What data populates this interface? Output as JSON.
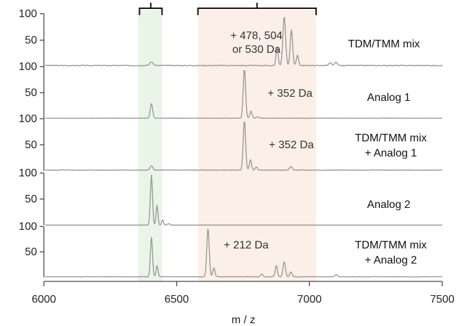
{
  "chart_data": {
    "type": "line",
    "title": "",
    "xlabel": "m / z",
    "xlim": [
      6000,
      7500
    ],
    "x_ticks": [
      6000,
      6500,
      7000,
      7500
    ],
    "y_ticks": [
      50,
      100
    ],
    "highlight_regions": [
      {
        "x0": 6355,
        "x1": 6445,
        "color": "#e9f5e6"
      },
      {
        "x0": 6580,
        "x1": 7025,
        "color": "#fbefe8"
      }
    ],
    "top_brackets": [
      {
        "x0": 6360,
        "x1": 6445
      },
      {
        "x0": 6580,
        "x1": 7025
      }
    ],
    "series": [
      {
        "label_lines": [
          "TDM/TMM mix"
        ],
        "annotation_lines": [
          "+ 478, 504",
          "or 530 Da"
        ],
        "noise": 0.7,
        "baseline": 2,
        "peaks": [
          {
            "mz": 6405,
            "height": 7,
            "width": 6
          },
          {
            "mz": 6878,
            "height": 35,
            "width": 4
          },
          {
            "mz": 6905,
            "height": 93,
            "width": 5
          },
          {
            "mz": 6932,
            "height": 68,
            "width": 4.5
          },
          {
            "mz": 6955,
            "height": 20,
            "width": 4
          },
          {
            "mz": 7078,
            "height": 5,
            "width": 5
          },
          {
            "mz": 7100,
            "height": 6,
            "width": 5
          }
        ]
      },
      {
        "label_lines": [
          "Analog 1"
        ],
        "annotation_lines": [
          "+ 352 Da"
        ],
        "noise": 0.4,
        "baseline": 1,
        "peaks": [
          {
            "mz": 6405,
            "height": 28,
            "width": 4.5
          },
          {
            "mz": 6755,
            "height": 95,
            "width": 4.5
          },
          {
            "mz": 6780,
            "height": 14,
            "width": 4
          },
          {
            "mz": 6805,
            "height": 3,
            "width": 5
          }
        ]
      },
      {
        "label_lines": [
          "TDM/TMM mix",
          "+ Analog 1"
        ],
        "annotation_lines": [
          "+ 352 Da"
        ],
        "noise": 0.6,
        "baseline": 1.5,
        "peaks": [
          {
            "mz": 6405,
            "height": 8,
            "width": 5
          },
          {
            "mz": 6755,
            "height": 95,
            "width": 4.5
          },
          {
            "mz": 6778,
            "height": 20,
            "width": 4
          },
          {
            "mz": 6800,
            "height": 6,
            "width": 4
          },
          {
            "mz": 6930,
            "height": 7,
            "width": 5
          }
        ]
      },
      {
        "label_lines": [
          "Analog 2"
        ],
        "annotation_lines": [],
        "noise": 0.0,
        "baseline": 0,
        "peaks": [
          {
            "mz": 6405,
            "height": 96,
            "width": 4
          },
          {
            "mz": 6426,
            "height": 38,
            "width": 3.5
          },
          {
            "mz": 6447,
            "height": 10,
            "width": 3.5
          },
          {
            "mz": 6470,
            "height": 3,
            "width": 4
          }
        ]
      },
      {
        "label_lines": [
          "TDM/TMM mix",
          "+ Analog 2"
        ],
        "annotation_lines": [
          "+ 212 Da"
        ],
        "noise": 0.5,
        "baseline": 1,
        "peaks": [
          {
            "mz": 6405,
            "height": 78,
            "width": 4
          },
          {
            "mz": 6426,
            "height": 22,
            "width": 3.5
          },
          {
            "mz": 6618,
            "height": 96,
            "width": 4.5
          },
          {
            "mz": 6640,
            "height": 18,
            "width": 4
          },
          {
            "mz": 6820,
            "height": 6,
            "width": 4
          },
          {
            "mz": 6875,
            "height": 22,
            "width": 4
          },
          {
            "mz": 6905,
            "height": 30,
            "width": 4.5
          },
          {
            "mz": 6930,
            "height": 10,
            "width": 4
          },
          {
            "mz": 7100,
            "height": 4,
            "width": 5
          }
        ]
      }
    ]
  }
}
